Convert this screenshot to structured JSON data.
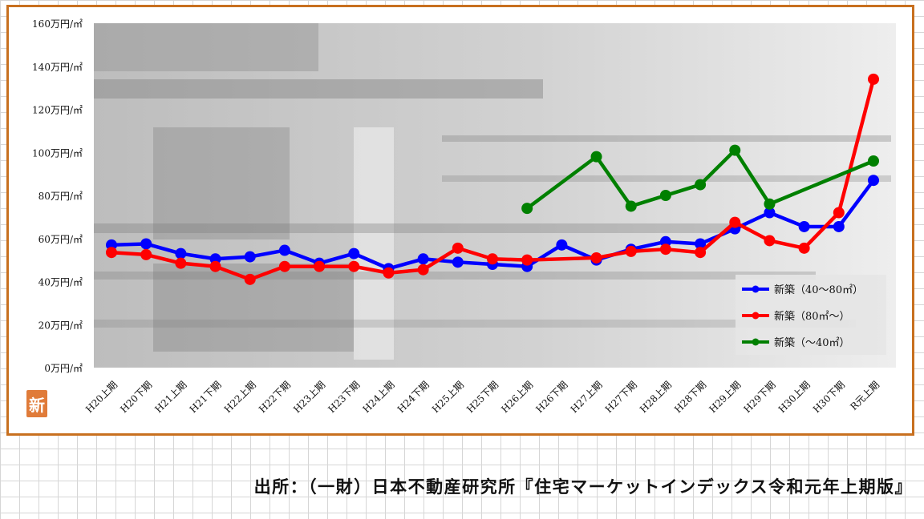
{
  "chart_data": {
    "type": "line",
    "categories": [
      "H20上期",
      "H20下期",
      "H21上期",
      "H21下期",
      "H22上期",
      "H22下期",
      "H23上期",
      "H23下期",
      "H24上期",
      "H24下期",
      "H25上期",
      "H25下期",
      "H26上期",
      "H26下期",
      "H27上期",
      "H27下期",
      "H28上期",
      "H28下期",
      "H29上期",
      "H29下期",
      "H30上期",
      "H30下期",
      "R元上期"
    ],
    "ylim": [
      0,
      160
    ],
    "yticks": [
      0,
      20,
      40,
      60,
      80,
      100,
      120,
      140,
      160
    ],
    "ytick_labels": [
      "0万円/㎡",
      "20万円/㎡",
      "40万円/㎡",
      "60万円/㎡",
      "80万円/㎡",
      "100万円/㎡",
      "120万円/㎡",
      "140万円/㎡",
      "160万円/㎡"
    ],
    "legend_position": "bottom-right",
    "series": [
      {
        "name": "新築（40～80㎡）",
        "color": "#0000ff",
        "values": [
          57,
          57.5,
          53,
          50.5,
          51.5,
          54.5,
          48.5,
          53,
          46,
          50.5,
          49,
          48,
          47,
          57,
          50,
          55,
          58.5,
          57.5,
          64.5,
          72,
          65.5,
          65.5,
          87
        ]
      },
      {
        "name": "新築（80㎡～）",
        "color": "#ff0000",
        "values": [
          53.5,
          52.5,
          48.5,
          47,
          41,
          47,
          47,
          47,
          44,
          45.5,
          55.5,
          50.5,
          50,
          null,
          51,
          54,
          55,
          53.5,
          67.5,
          59,
          55.5,
          72,
          134
        ]
      },
      {
        "name": "新築（～40㎡）",
        "color": "#008000",
        "values": [
          null,
          null,
          null,
          null,
          null,
          null,
          null,
          null,
          null,
          null,
          null,
          null,
          74,
          null,
          98,
          75,
          80,
          85,
          101,
          76,
          null,
          null,
          96
        ]
      }
    ]
  },
  "stamp_text": "新",
  "source_text": "出所：（一財）日本不動産研究所『住宅マーケットインデックス令和元年上期版』"
}
